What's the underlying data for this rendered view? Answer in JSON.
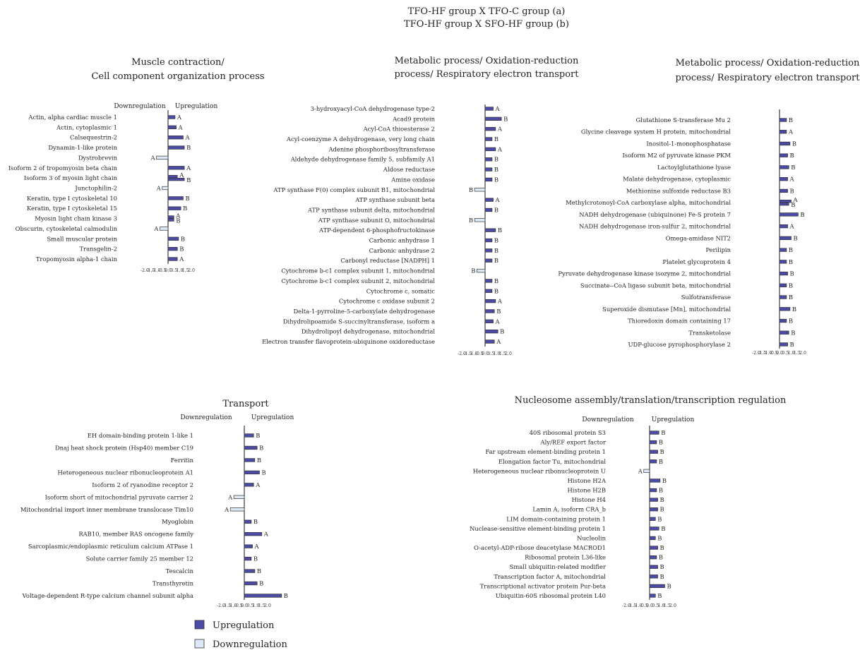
{
  "figure": {
    "title_line1": "TFO-HF group X TFO-C group (a)",
    "title_line2": "TFO-HF group X SFO-HF group (b)",
    "legend": {
      "up_label": "Upregulation",
      "down_label": "Downregulation",
      "up_color": "#4b4ba6",
      "down_color": "#dde9f7"
    }
  },
  "chart_data": [
    {
      "type": "bar",
      "orientation": "horizontal",
      "title": [
        "Muscle contraction/",
        "Cell component organization process"
      ],
      "header_left": "Downregulation",
      "header_right": "Upregulation",
      "xlim": [
        -2.0,
        2.0
      ],
      "xticks": [
        "-2.0",
        "-1.5",
        "-1.0",
        "-0.5",
        "0.0",
        "0.5",
        "1.0",
        "1.5",
        "2.0"
      ],
      "categories": [
        "Actin, alpha cardiac muscle 1",
        "Actin, cytoplasmic 1",
        "Calsequestrin-2",
        "Dynamin-1-like protein",
        "Dystrobrevin",
        "Isoform 2 of tropomyosin beta chain",
        "Isoform 3 of myosin light chain",
        "Junctophilin-2",
        "Keratin, type I cytoskeletal 10",
        "Keratin, type I cytoskeletal 15",
        "Myosin light chain kinase 3",
        "Obscurin, cytoskeletal calmodulin",
        "Small muscular protein",
        "Transgelin-2",
        "Tropomyosin alpha-1 chain"
      ],
      "rows": [
        [
          [
            0.6,
            "A"
          ]
        ],
        [
          [
            0.7,
            "A"
          ]
        ],
        [
          [
            1.3,
            "A"
          ]
        ],
        [
          [
            1.4,
            "B"
          ]
        ],
        [
          [
            -1.0,
            "A"
          ]
        ],
        [
          [
            1.4,
            "A"
          ]
        ],
        [
          [
            0.8,
            "A"
          ],
          [
            1.4,
            "B"
          ]
        ],
        [
          [
            -0.5,
            "A"
          ]
        ],
        [
          [
            1.3,
            "B"
          ]
        ],
        [
          [
            1.1,
            "B"
          ]
        ],
        [
          [
            0.5,
            "A"
          ],
          [
            0.5,
            "B"
          ]
        ],
        [
          [
            -0.7,
            "A"
          ]
        ],
        [
          [
            0.9,
            "B"
          ]
        ],
        [
          [
            0.8,
            "B"
          ]
        ],
        [
          [
            0.8,
            "A"
          ]
        ]
      ]
    },
    {
      "type": "bar",
      "orientation": "horizontal",
      "title": [
        "Metabolic process/ Oxidation-reduction",
        "process/ Respiratory electron transport"
      ],
      "header_left": "",
      "header_right": "",
      "xlim": [
        -2.0,
        2.0
      ],
      "xticks": [
        "-2.0",
        "-1.5",
        "-1.0",
        "-0.5",
        "0.0",
        "0.5",
        "1.0",
        "1.5",
        "2.0"
      ],
      "categories": [
        "3-hydroxyacyl-CoA dehydrogenase type-2",
        "Acad9 protein",
        "Acyl-CoA thioesterase 2",
        "Acyl-coenzyme A dehydrogenase, very long chain",
        "Adenine phosphoribosyltransferase",
        "Aldehyde dehydrogenase family 5, subfamily A1",
        "Aldose reductase",
        "Amine oxidase",
        "ATP synthase F(0) complex subunit B1, mitochondrial",
        "ATP synthase subunit beta",
        "ATP synthase subunit delta, mitochondrial",
        "ATP synthase subunit O, mitochondrial",
        "ATP-dependent 6-phosphofructokinase",
        "Carbonic anhydrase 1",
        "Carbonic anhydrase 2",
        "Carbonyl reductase [NADPH] 1",
        "Cytochrome b-c1 complex subunit 1, mitochondrial",
        "Cytochrome b-c1 complex subunit 2, mitochondrial",
        "Cytochrome c, somatic",
        "Cytochrome c oxidase subunit 2",
        "Delta-1-pyrroline-5-carboxylate dehydrogenase",
        "Dihydrolipoamide S-succinyltransferase, isoform a",
        "Dihydrolipoyl dehydrogenase, mitochondrial",
        "Electron transfer flavoprotein-ubiquinone oxidoreductase"
      ],
      "rows": [
        [
          [
            0.7,
            "A"
          ]
        ],
        [
          [
            1.4,
            "B"
          ]
        ],
        [
          [
            0.9,
            "A"
          ]
        ],
        [
          [
            0.6,
            "B"
          ]
        ],
        [
          [
            0.9,
            "A"
          ]
        ],
        [
          [
            0.6,
            "B"
          ]
        ],
        [
          [
            0.6,
            "B"
          ]
        ],
        [
          [
            0.6,
            "B"
          ]
        ],
        [
          [
            -0.9,
            "B"
          ]
        ],
        [
          [
            0.7,
            "A"
          ]
        ],
        [
          [
            0.6,
            "B"
          ]
        ],
        [
          [
            -0.9,
            "B"
          ]
        ],
        [
          [
            0.9,
            "B"
          ]
        ],
        [
          [
            0.6,
            "B"
          ]
        ],
        [
          [
            0.6,
            "B"
          ]
        ],
        [
          [
            0.6,
            "B"
          ]
        ],
        [
          [
            -0.7,
            "B"
          ]
        ],
        [
          [
            0.6,
            "B"
          ]
        ],
        [
          [
            0.6,
            "B"
          ]
        ],
        [
          [
            0.9,
            "A"
          ]
        ],
        [
          [
            0.8,
            "B"
          ]
        ],
        [
          [
            0.7,
            "A"
          ]
        ],
        [
          [
            1.1,
            "B"
          ]
        ],
        [
          [
            0.8,
            "A"
          ]
        ]
      ]
    },
    {
      "type": "bar",
      "orientation": "horizontal",
      "title": [
        "Metabolic process/ Oxidation-reduction",
        "process/ Respiratory electron transport"
      ],
      "header_left": "",
      "header_right": "",
      "xlim": [
        -2.0,
        2.0
      ],
      "xticks": [
        "-2.0",
        "-1.5",
        "-1.0",
        "-0.5",
        "0.0",
        "0.5",
        "1.0",
        "1.5",
        "2.0"
      ],
      "categories": [
        "Glutathione S-transferase Mu 2",
        "Glycine cleavage system H protein, mitochondrial",
        "Inositol-1-monophosphatase",
        "Isoform M2 of pyruvate kinase PKM",
        "Lactoylglutathione lyase",
        "Malate dehydrogenase, cytoplasmic",
        "Methionine sulfoxide reductase B3",
        "Methylcrotonoyl-CoA carboxylase alpha, mitochondrial",
        "NADH dehydrogenase (ubiquinone) Fe-S protein 7",
        "NADH dehydrogenase iron-sulfur 2, mitochondrial",
        "Omega-amidase NIT2",
        "Perilipin",
        "Platelet glycoprotein 4",
        "Pyruvate dehydrogenase kinase isozyme 2, mitochondrial",
        "Succinate--CoA ligase subunit beta, mitochondrial",
        "Sulfotransferase",
        "Superoxide dismutase [Mn], mitochondrial",
        "Thioredoxin domain containing 17",
        "Transketolase",
        "UDP-glucose pyrophosphorylase 2"
      ],
      "rows": [
        [
          [
            0.6,
            "B"
          ]
        ],
        [
          [
            0.6,
            "A"
          ]
        ],
        [
          [
            0.9,
            "B"
          ]
        ],
        [
          [
            0.7,
            "B"
          ]
        ],
        [
          [
            0.8,
            "B"
          ]
        ],
        [
          [
            0.7,
            "A"
          ]
        ],
        [
          [
            0.7,
            "B"
          ]
        ],
        [
          [
            1.0,
            "A"
          ],
          [
            0.8,
            "B"
          ]
        ],
        [
          [
            1.6,
            "B"
          ]
        ],
        [
          [
            0.7,
            "A"
          ]
        ],
        [
          [
            1.0,
            "B"
          ]
        ],
        [
          [
            0.6,
            "B"
          ]
        ],
        [
          [
            0.6,
            "B"
          ]
        ],
        [
          [
            0.7,
            "B"
          ]
        ],
        [
          [
            0.6,
            "B"
          ]
        ],
        [
          [
            0.6,
            "B"
          ]
        ],
        [
          [
            0.9,
            "B"
          ]
        ],
        [
          [
            0.6,
            "B"
          ]
        ],
        [
          [
            0.8,
            "B"
          ]
        ],
        [
          [
            0.7,
            "B"
          ]
        ]
      ]
    },
    {
      "type": "bar",
      "orientation": "horizontal",
      "title": [
        "Transport"
      ],
      "header_left": "Downregulation",
      "header_right": "Upregulation",
      "xlim": [
        -2.0,
        2.5
      ],
      "xticks": [
        "-2.0",
        "-1.5",
        "-1.0",
        "-0.5",
        "0.0",
        "0.5",
        "1.0",
        "1.5",
        "2.0"
      ],
      "categories": [
        "EH domain-binding protein 1-like 1",
        "Dnaj heat shock protein (Hsp40) member C19",
        "Ferritin",
        "Heterogeneous nuclear ribonucleoprotein A1",
        "Isoform 2 of ryanodine receptor 2",
        "Isoform short of mitochondrial pyruvate carrier 2",
        "Mitochondrial import inner membrane translocase Tim10",
        "Myoglobin",
        "RAB10, member RAS oncogene family",
        "Sarcoplasmic/endoplasmic reticulum calcium ATPase 1",
        "Solute carrier family 25 member 12",
        "Tescalcin",
        "Transthyretin",
        "Voltage-dependent R-type calcium channel subunit alpha"
      ],
      "rows": [
        [
          [
            0.8,
            "B"
          ]
        ],
        [
          [
            1.1,
            "B"
          ]
        ],
        [
          [
            0.9,
            "B"
          ]
        ],
        [
          [
            1.3,
            "B"
          ]
        ],
        [
          [
            0.8,
            "A"
          ]
        ],
        [
          [
            -0.9,
            "A"
          ]
        ],
        [
          [
            -1.2,
            "A"
          ]
        ],
        [
          [
            0.6,
            "B"
          ]
        ],
        [
          [
            1.5,
            "A"
          ]
        ],
        [
          [
            0.7,
            "A"
          ]
        ],
        [
          [
            0.6,
            "B"
          ]
        ],
        [
          [
            0.9,
            "B"
          ]
        ],
        [
          [
            1.1,
            "B"
          ]
        ],
        [
          [
            3.2,
            "B"
          ]
        ]
      ]
    },
    {
      "type": "bar",
      "orientation": "horizontal",
      "title": [
        "Nucleosome assembly/translation/transcription regulation"
      ],
      "header_left": "Downregulation",
      "header_right": "Upregulation",
      "xlim": [
        -2.0,
        2.0
      ],
      "xticks": [
        "-2.0",
        "-1.5",
        "-1.0",
        "-0.5",
        "0.0",
        "0.5",
        "1.0",
        "1.5",
        "2.0"
      ],
      "categories": [
        "40S ribosomal protein S3",
        "Aly/REF export factor",
        "Far upstream element-binding protein 1",
        "Elongation factor Tu, mitochondrial",
        "Heterogeneous nuclear ribonucleoprotein U",
        "Histone H2A",
        "Histone H2B",
        "Histone H4",
        "Lamin A, isoform CRA_b",
        "LIM domain-containing protein 1",
        "Nuclease-sensitive element-binding protein 1",
        "Nucleolin",
        "O-acetyl-ADP-ribose deacetylase MACROD1",
        "Ribosomal protein L36-like",
        "Small ubiquitin-related modifier",
        "Transcription factor A, mitochondrial",
        "Transcriptional activator protein Pur-beta",
        "Ubiquitin-60S ribosomal protein L40"
      ],
      "rows": [
        [
          [
            0.8,
            "B"
          ]
        ],
        [
          [
            0.6,
            "B"
          ]
        ],
        [
          [
            0.7,
            "B"
          ]
        ],
        [
          [
            0.6,
            "B"
          ]
        ],
        [
          [
            -0.5,
            "A"
          ]
        ],
        [
          [
            0.9,
            "B"
          ]
        ],
        [
          [
            0.6,
            "B"
          ]
        ],
        [
          [
            0.7,
            "B"
          ]
        ],
        [
          [
            0.7,
            "B"
          ]
        ],
        [
          [
            0.5,
            "B"
          ]
        ],
        [
          [
            0.8,
            "B"
          ]
        ],
        [
          [
            0.5,
            "B"
          ]
        ],
        [
          [
            0.7,
            "B"
          ]
        ],
        [
          [
            0.6,
            "B"
          ]
        ],
        [
          [
            0.7,
            "B"
          ]
        ],
        [
          [
            0.7,
            "B"
          ]
        ],
        [
          [
            1.3,
            "B"
          ]
        ],
        [
          [
            0.5,
            "B"
          ]
        ]
      ]
    }
  ]
}
